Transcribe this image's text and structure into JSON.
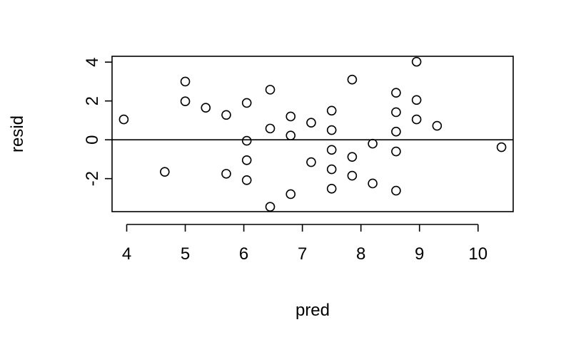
{
  "chart_data": {
    "type": "scatter",
    "title": "",
    "xlabel": "pred",
    "ylabel": "resid",
    "xlim": [
      3.75,
      10.6
    ],
    "ylim": [
      -3.7,
      4.3
    ],
    "xticks": [
      4,
      5,
      6,
      7,
      8,
      9,
      10
    ],
    "yticks": [
      -2,
      0,
      2,
      4
    ],
    "xtick_labels": [
      "4",
      "5",
      "6",
      "7",
      "8",
      "9",
      "10"
    ],
    "ytick_labels": [
      "-2",
      "0",
      "2",
      "4"
    ],
    "reference_line_y": 0,
    "grid": false,
    "marker": "open-circle",
    "points": [
      {
        "x": 3.95,
        "y": 1.05
      },
      {
        "x": 4.65,
        "y": -1.65
      },
      {
        "x": 5.0,
        "y": 3.0
      },
      {
        "x": 5.0,
        "y": 1.98
      },
      {
        "x": 5.35,
        "y": 1.65
      },
      {
        "x": 5.7,
        "y": 1.28
      },
      {
        "x": 5.7,
        "y": -1.75
      },
      {
        "x": 6.05,
        "y": 1.9
      },
      {
        "x": 6.05,
        "y": -0.05
      },
      {
        "x": 6.05,
        "y": -1.05
      },
      {
        "x": 6.05,
        "y": -2.08
      },
      {
        "x": 6.45,
        "y": 2.58
      },
      {
        "x": 6.45,
        "y": 0.58
      },
      {
        "x": 6.45,
        "y": -3.45
      },
      {
        "x": 6.8,
        "y": 1.2
      },
      {
        "x": 6.8,
        "y": 0.22
      },
      {
        "x": 6.8,
        "y": -2.8
      },
      {
        "x": 7.15,
        "y": 0.88
      },
      {
        "x": 7.15,
        "y": -1.15
      },
      {
        "x": 7.5,
        "y": 1.5
      },
      {
        "x": 7.5,
        "y": 0.5
      },
      {
        "x": 7.5,
        "y": -0.52
      },
      {
        "x": 7.5,
        "y": -1.52
      },
      {
        "x": 7.5,
        "y": -2.52
      },
      {
        "x": 7.85,
        "y": 3.1
      },
      {
        "x": 7.85,
        "y": -0.88
      },
      {
        "x": 7.85,
        "y": -1.85
      },
      {
        "x": 8.2,
        "y": -0.2
      },
      {
        "x": 8.2,
        "y": -2.25
      },
      {
        "x": 8.6,
        "y": 2.42
      },
      {
        "x": 8.6,
        "y": 1.42
      },
      {
        "x": 8.6,
        "y": 0.42
      },
      {
        "x": 8.6,
        "y": -0.6
      },
      {
        "x": 8.6,
        "y": -2.62
      },
      {
        "x": 8.95,
        "y": 4.02
      },
      {
        "x": 8.95,
        "y": 2.05
      },
      {
        "x": 8.95,
        "y": 1.05
      },
      {
        "x": 9.3,
        "y": 0.72
      },
      {
        "x": 10.4,
        "y": -0.38
      }
    ]
  }
}
